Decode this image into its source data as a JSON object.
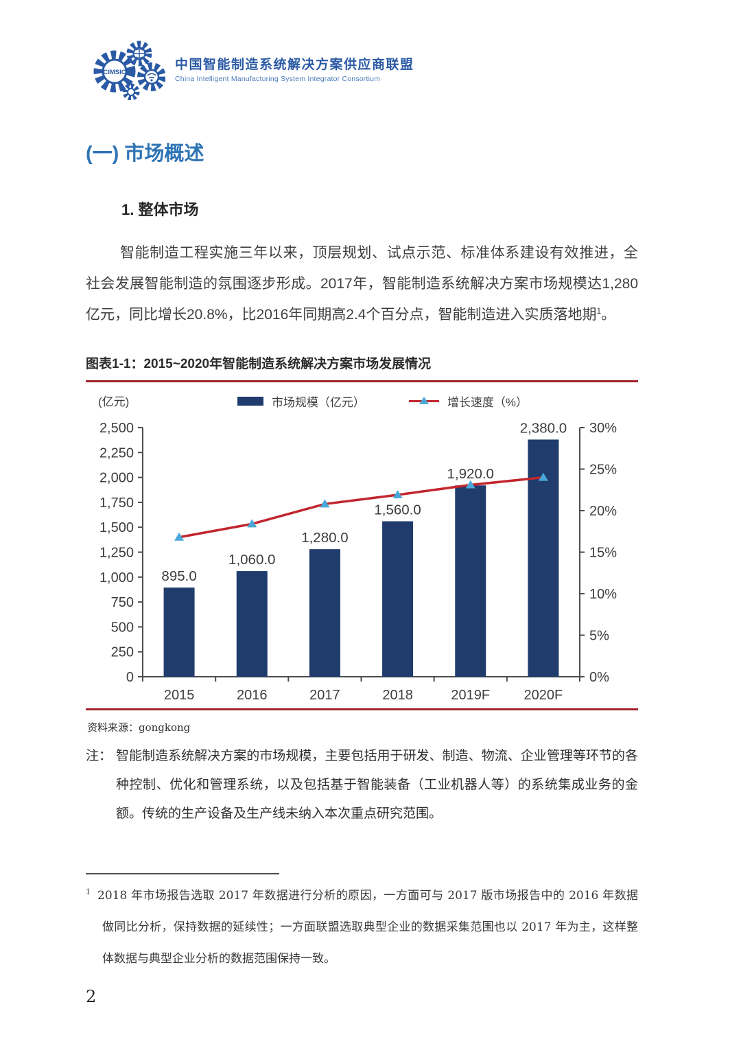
{
  "header": {
    "logo": {
      "acronym": "CIMSIC",
      "title_zh": "中国智能制造系统解决方案供应商联盟",
      "title_en": "China Intelligent Manufacturing System Integrator Consortium"
    }
  },
  "section": {
    "heading": "(一) 市场概述",
    "subheading": "1. 整体市场",
    "paragraph": {
      "text": "智能制造工程实施三年以来，顶层规划、试点示范、标准体系建设有效推进，全社会发展智能制造的氛围逐步形成。2017年，智能制造系统解决方案市场规模达1,280亿元，同比增长20.8%，比2016年同期高2.4个百分点，智能制造进入实质落地期",
      "footnote_ref": "1",
      "period": "。"
    }
  },
  "figure": {
    "caption": "图表1-1：2015~2020年智能制造系统解决方案市场发展情况",
    "unit_label": "(亿元)",
    "source": "资料来源：gongkong",
    "note_label": "注：",
    "note_text": "智能制造系统解决方案的市场规模，主要包括用于研发、制造、物流、企业管理等环节的各种控制、优化和管理系统，以及包括基于智能装备（工业机器人等）的系统集成业务的金额。传统的生产设备及生产线未纳入本次重点研究范围。"
  },
  "chart_data": {
    "type": "bar+line",
    "title": "2015~2020年智能制造系统解决方案市场发展情况",
    "categories": [
      "2015",
      "2016",
      "2017",
      "2018",
      "2019F",
      "2020F"
    ],
    "series": [
      {
        "name": "市场规模（亿元）",
        "type": "bar",
        "axis": "left",
        "values": [
          895.0,
          1060.0,
          1280.0,
          1560.0,
          1920.0,
          2380.0
        ],
        "labels": [
          "895.0",
          "1,060.0",
          "1,280.0",
          "1,560.0",
          "1,920.0",
          "2,380.0"
        ],
        "color": "#1f3c6d"
      },
      {
        "name": "增长速度（%）",
        "type": "line",
        "axis": "right",
        "values": [
          16.8,
          18.4,
          20.8,
          21.9,
          23.1,
          24.0
        ],
        "color": "#c2262e",
        "marker": "triangle",
        "marker_color": "#4aa8d8"
      }
    ],
    "left_axis": {
      "title": "(亿元)",
      "min": 0,
      "max": 2500,
      "tick_step": 250,
      "tick_labels": [
        "0",
        "250",
        "500",
        "750",
        "1,000",
        "1,250",
        "1,500",
        "1,750",
        "2,000",
        "2,250",
        "2,500"
      ]
    },
    "right_axis": {
      "title": "%",
      "min": 0,
      "max": 30,
      "tick_step": 5,
      "tick_labels": [
        "0%",
        "5%",
        "10%",
        "15%",
        "20%",
        "25%",
        "30%"
      ]
    },
    "legend_position": "top",
    "grid": false
  },
  "footnote": {
    "marker": "1",
    "text": "2018 年市场报告选取 2017 年数据进行分析的原因，一方面可与 2017 版市场报告中的 2016 年数据做同比分析，保持数据的延续性；一方面联盟选取典型企业的数据采集范围也以 2017 年为主，这样整体数据与典型企业分析的数据范围保持一致。"
  },
  "page": {
    "number": "2"
  },
  "colors": {
    "heading_blue": "#2e74b5",
    "logo_blue": "#2b5aa5",
    "bar_navy": "#1f3c6d",
    "line_red": "#c2262e",
    "marker_blue": "#4aa8d8",
    "rule_dark_red": "#a0232a"
  }
}
